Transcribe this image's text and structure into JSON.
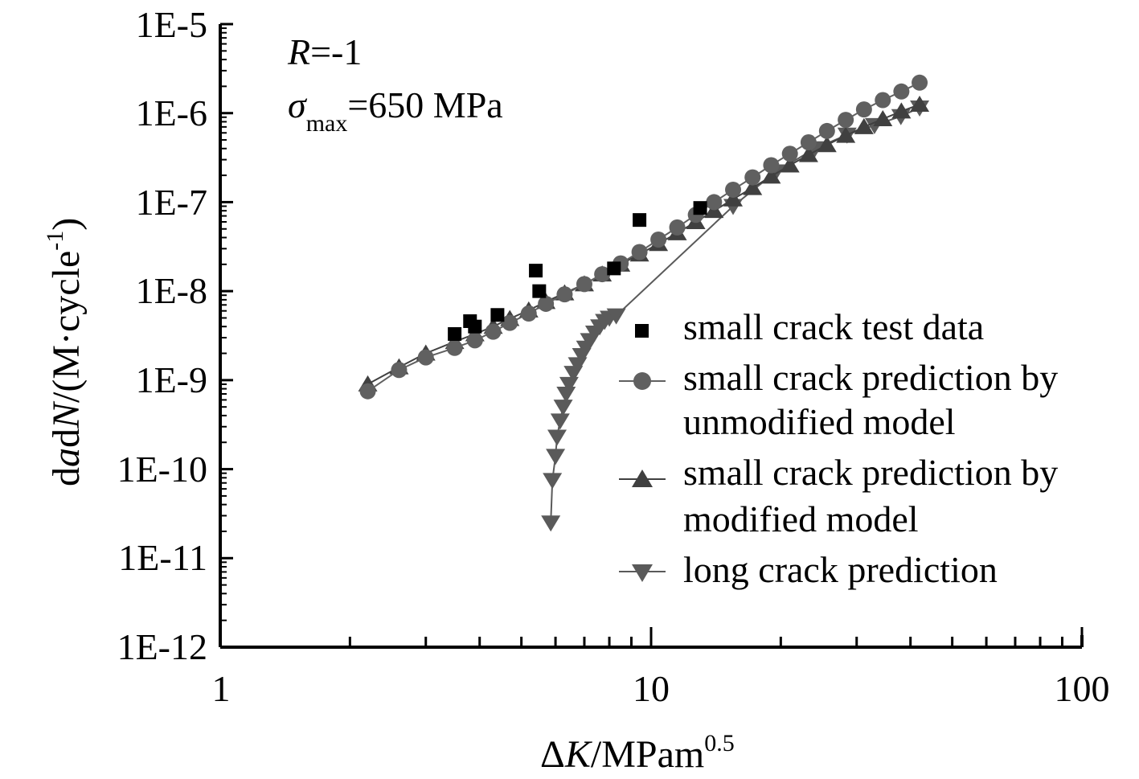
{
  "chart_data": {
    "type": "scatter",
    "x_scale": "log",
    "y_scale": "log",
    "xlim": [
      1,
      100
    ],
    "ylim": [
      1e-12,
      1e-05
    ],
    "x_ticks": [
      {
        "value": 1,
        "label": "1"
      },
      {
        "value": 10,
        "label": "10"
      },
      {
        "value": 100,
        "label": "100"
      }
    ],
    "y_ticks": [
      {
        "value": 1e-12,
        "label": "1E-12"
      },
      {
        "value": 1e-11,
        "label": "1E-11"
      },
      {
        "value": 1e-10,
        "label": "1E-10"
      },
      {
        "value": 1e-09,
        "label": "1E-9"
      },
      {
        "value": 1e-08,
        "label": "1E-8"
      },
      {
        "value": 1e-07,
        "label": "1E-7"
      },
      {
        "value": 1e-06,
        "label": "1E-6"
      },
      {
        "value": 1e-05,
        "label": "1E-5"
      }
    ],
    "xlabel": {
      "delta": "Δ",
      "var": "K",
      "unit": "/MPam",
      "sup": "0.5"
    },
    "ylabel": {
      "d1": "d",
      "a": "a",
      "d2": "d",
      "N": "N",
      "unit": "/(M·cycle",
      "sup": "-1",
      "close": ")"
    },
    "annotations": {
      "r_var": "R",
      "r_val": "=-1",
      "sigma": "σ",
      "sigma_sub": "max",
      "sigma_val": "=650 MPa"
    },
    "legend_position": "right-middle",
    "series": [
      {
        "name": "small crack test data",
        "name_lines": [
          "small crack test data"
        ],
        "marker": "square",
        "line": false,
        "color": "#000000",
        "x": [
          3.5,
          3.8,
          3.9,
          4.4,
          5.4,
          5.5,
          8.2,
          9.4,
          13.0
        ],
        "y": [
          3.3e-09,
          4.6e-09,
          4e-09,
          5.4e-09,
          1.7e-08,
          1e-08,
          1.8e-08,
          6.3e-08,
          8.6e-08
        ]
      },
      {
        "name": "small crack prediction by unmodified model",
        "name_lines": [
          "small crack prediction by",
          "unmodified model"
        ],
        "marker": "circle",
        "line": true,
        "color": "#606060",
        "x": [
          2.2,
          2.6,
          3.0,
          3.5,
          3.9,
          4.3,
          4.7,
          5.2,
          5.7,
          6.3,
          7.0,
          7.7,
          8.5,
          9.4,
          10.4,
          11.5,
          12.7,
          14.0,
          15.5,
          17.2,
          19.0,
          21.0,
          23.2,
          25.6,
          28.3,
          31.2,
          34.5,
          38.1,
          42.0
        ],
        "y": [
          7.5e-10,
          1.3e-09,
          1.8e-09,
          2.3e-09,
          2.8e-09,
          3.5e-09,
          4.4e-09,
          5.6e-09,
          7.2e-09,
          9.2e-09,
          1.2e-08,
          1.55e-08,
          2.05e-08,
          2.75e-08,
          3.8e-08,
          5.2e-08,
          7.2e-08,
          1e-07,
          1.38e-07,
          1.9e-07,
          2.6e-07,
          3.5e-07,
          4.7e-07,
          6.3e-07,
          8.4e-07,
          1.1e-06,
          1.4e-06,
          1.75e-06,
          2.2e-06
        ]
      },
      {
        "name": "small crack prediction by modified model",
        "name_lines": [
          "small crack prediction by",
          "modified model"
        ],
        "marker": "triangle-up",
        "line": true,
        "color": "#404040",
        "x": [
          2.2,
          2.6,
          3.0,
          3.5,
          3.9,
          4.3,
          4.7,
          5.2,
          5.7,
          6.3,
          7.0,
          7.7,
          8.5,
          9.4,
          10.4,
          11.5,
          12.7,
          14.0,
          15.5,
          17.2,
          19.0,
          21.0,
          23.2,
          25.6,
          28.3,
          31.2,
          34.5,
          38.1,
          42.0
        ],
        "y": [
          9e-10,
          1.4e-09,
          2e-09,
          2.7e-09,
          3.3e-09,
          4e-09,
          4.9e-09,
          6.1e-09,
          7.6e-09,
          9.5e-09,
          1.2e-08,
          1.55e-08,
          2e-08,
          2.6e-08,
          3.4e-08,
          4.5e-08,
          6e-08,
          8e-08,
          1.08e-07,
          1.45e-07,
          1.95e-07,
          2.6e-07,
          3.4e-07,
          4.4e-07,
          5.6e-07,
          7e-07,
          8.6e-07,
          1.05e-06,
          1.25e-06
        ]
      },
      {
        "name": "long crack prediction",
        "name_lines": [
          "long crack prediction"
        ],
        "marker": "triangle-down",
        "line": true,
        "color": "#5a5a5a",
        "x": [
          5.85,
          5.9,
          6.0,
          6.05,
          6.15,
          6.25,
          6.35,
          6.45,
          6.6,
          6.75,
          6.9,
          7.05,
          7.2,
          7.4,
          7.6,
          7.8,
          8.0,
          8.3,
          15.5,
          19.5,
          24.0,
          28.5,
          33.0,
          38.0,
          42.0
        ],
        "y": [
          2.5e-11,
          7.5e-11,
          1.4e-10,
          2.3e-10,
          3.5e-10,
          5e-10,
          7e-10,
          9e-10,
          1.2e-09,
          1.5e-09,
          1.9e-09,
          2.3e-09,
          2.8e-09,
          3.4e-09,
          4e-09,
          4.6e-09,
          5e-09,
          5.3e-09,
          9e-08,
          2.2e-07,
          4e-07,
          5.7e-07,
          7.3e-07,
          9.2e-07,
          1.15e-06
        ]
      }
    ]
  }
}
